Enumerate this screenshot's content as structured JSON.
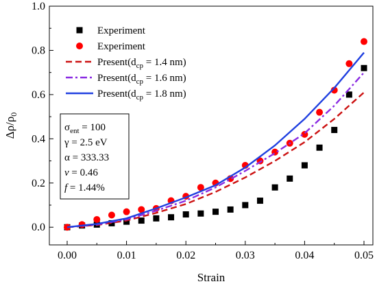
{
  "chart_data": {
    "type": "scatter",
    "xlabel": "Strain",
    "ylabel": "Δρ/ρ",
    "ylabel_subscript": "0",
    "xlim": [
      -0.003,
      0.0515
    ],
    "ylim": [
      -0.08,
      1.0
    ],
    "x_ticks": [
      0.0,
      0.01,
      0.02,
      0.03,
      0.04,
      0.05
    ],
    "x_tick_labels": [
      "0.00",
      "0.01",
      "0.02",
      "0.03",
      "0.04",
      "0.05"
    ],
    "y_ticks": [
      0.0,
      0.2,
      0.4,
      0.6,
      0.8,
      1.0
    ],
    "y_tick_labels": [
      "0.0",
      "0.2",
      "0.4",
      "0.6",
      "0.8",
      "1.0"
    ],
    "grid": false,
    "legend_position": "top-left",
    "series": [
      {
        "name": "Experiment",
        "marker": "square",
        "color": "#000000",
        "x": [
          0.0,
          0.0025,
          0.005,
          0.0075,
          0.01,
          0.0125,
          0.015,
          0.0175,
          0.02,
          0.0225,
          0.025,
          0.0275,
          0.03,
          0.0325,
          0.035,
          0.0375,
          0.04,
          0.0425,
          0.045,
          0.0475,
          0.05
        ],
        "y": [
          0.0,
          0.008,
          0.012,
          0.018,
          0.025,
          0.03,
          0.04,
          0.045,
          0.058,
          0.062,
          0.07,
          0.08,
          0.1,
          0.12,
          0.18,
          0.22,
          0.28,
          0.36,
          0.44,
          0.6,
          0.72
        ]
      },
      {
        "name": "Experiment",
        "marker": "circle",
        "color": "#ff0000",
        "x": [
          0.0,
          0.0025,
          0.005,
          0.0075,
          0.01,
          0.0125,
          0.015,
          0.0175,
          0.02,
          0.0225,
          0.025,
          0.0275,
          0.03,
          0.0325,
          0.035,
          0.0375,
          0.04,
          0.0425,
          0.045,
          0.0475,
          0.05
        ],
        "y": [
          0.0,
          0.012,
          0.035,
          0.055,
          0.07,
          0.08,
          0.085,
          0.12,
          0.14,
          0.18,
          0.2,
          0.22,
          0.28,
          0.3,
          0.34,
          0.38,
          0.42,
          0.52,
          0.62,
          0.74,
          0.84
        ]
      },
      {
        "name": "Present(d",
        "name_subscript": "cp",
        "name_suffix": " = 1.4 nm)",
        "line": "dashed",
        "color": "#cc1111",
        "x": [
          0.0,
          0.005,
          0.01,
          0.015,
          0.02,
          0.025,
          0.03,
          0.035,
          0.04,
          0.045,
          0.05
        ],
        "y": [
          0.0,
          0.01,
          0.03,
          0.065,
          0.105,
          0.16,
          0.225,
          0.3,
          0.385,
          0.49,
          0.61
        ]
      },
      {
        "name": "Present(d",
        "name_subscript": "cp",
        "name_suffix": " = 1.6 nm)",
        "line": "dash-dot",
        "color": "#8a2be2",
        "x": [
          0.0,
          0.005,
          0.01,
          0.015,
          0.02,
          0.025,
          0.03,
          0.035,
          0.04,
          0.045,
          0.05
        ],
        "y": [
          0.0,
          0.012,
          0.035,
          0.075,
          0.12,
          0.18,
          0.255,
          0.335,
          0.425,
          0.55,
          0.7
        ]
      },
      {
        "name": "Present(d",
        "name_subscript": "cp",
        "name_suffix": " = 1.8 nm)",
        "line": "solid",
        "color": "#1f3fe0",
        "x": [
          0.0,
          0.005,
          0.01,
          0.015,
          0.02,
          0.025,
          0.03,
          0.035,
          0.04,
          0.045,
          0.05
        ],
        "y": [
          0.0,
          0.015,
          0.04,
          0.085,
          0.135,
          0.19,
          0.27,
          0.37,
          0.49,
          0.63,
          0.79
        ]
      }
    ],
    "parameters": [
      {
        "symbol": "σ",
        "subscript": "ent",
        "text": " = 100"
      },
      {
        "symbol": "γ",
        "subscript": "",
        "text": " = 2.5 eV"
      },
      {
        "symbol": "α",
        "subscript": "",
        "text": " = 333.33"
      },
      {
        "symbol": "v",
        "subscript": "",
        "text": " = 0.46",
        "italic": true
      },
      {
        "symbol": "f",
        "subscript": "",
        "text": " = 1.44%",
        "italic": true
      }
    ]
  }
}
